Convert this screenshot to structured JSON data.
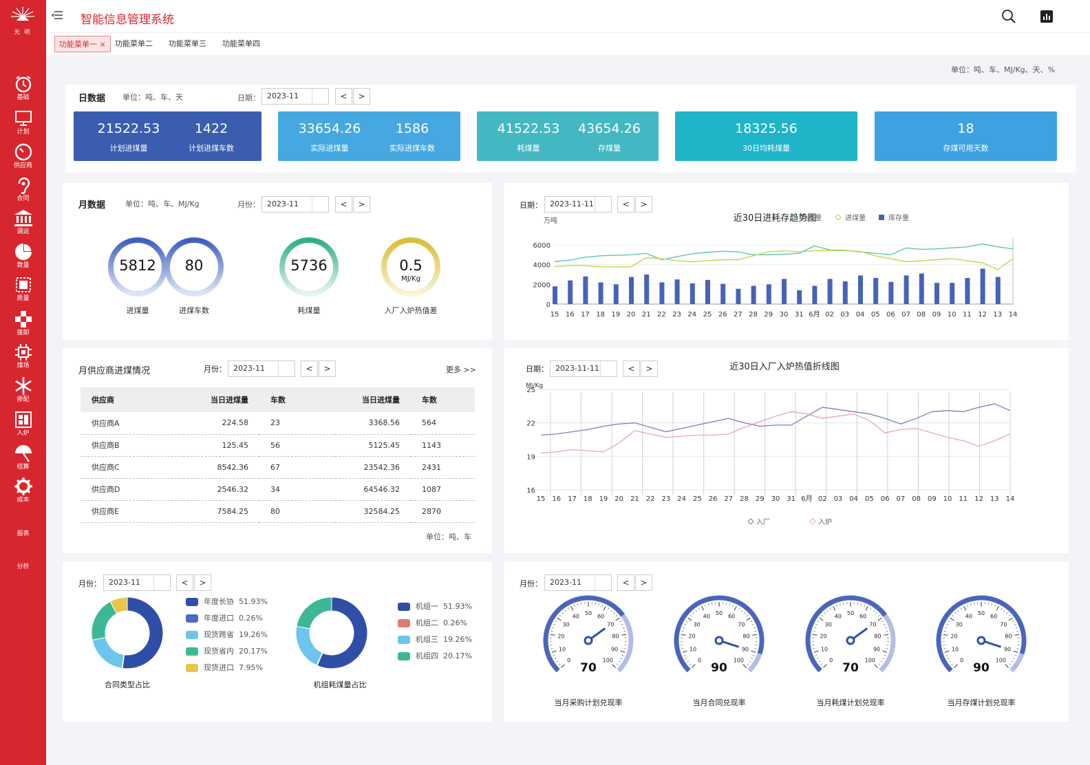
{
  "colors": {
    "brand": "#d8262e",
    "kpi1": "#3a5db0",
    "kpi2": "#46a8e0",
    "kpi3": "#44b8c2",
    "kpi4": "#1fb4c8",
    "kpi5": "#3ea1e2"
  },
  "brand": {
    "logo_text": "光 明",
    "app_title": "智能信息管理系统"
  },
  "nav": [
    {
      "label": "基础",
      "icon": "alarm-clock-icon"
    },
    {
      "label": "计划",
      "icon": "monitor-icon"
    },
    {
      "label": "供应商",
      "icon": "speedometer-icon"
    },
    {
      "label": "合同",
      "icon": "ear-icon"
    },
    {
      "label": "调运",
      "icon": "bank-icon"
    },
    {
      "label": "数量",
      "icon": "pie-chart-icon"
    },
    {
      "label": "质量",
      "icon": "grid-icon"
    },
    {
      "label": "接卸",
      "icon": "cross-icon"
    },
    {
      "label": "煤场",
      "icon": "chip-icon"
    },
    {
      "label": "掺配",
      "icon": "snowflake-icon"
    },
    {
      "label": "入炉",
      "icon": "layout-icon"
    },
    {
      "label": "结算",
      "icon": "umbrella-icon"
    },
    {
      "label": "成本",
      "icon": "gear-icon"
    },
    {
      "label": "报表",
      "icon": ""
    },
    {
      "label": "分析",
      "icon": ""
    }
  ],
  "tabs": [
    {
      "label": "功能菜单一",
      "close": "×"
    },
    {
      "label": "功能菜单二"
    },
    {
      "label": "功能菜单三"
    },
    {
      "label": "功能菜单四"
    }
  ],
  "unit_top": "单位：吨、车、MJ/Kg、天、%",
  "daily": {
    "title": "日数据",
    "unit": "单位：吨、车、天",
    "date_label": "日期：",
    "date": "2023-11",
    "prev": "<",
    "next": ">",
    "kpis": [
      {
        "values": [
          "21522.53",
          "1422"
        ],
        "labels": [
          "计划进煤量",
          "计划进煤车数"
        ]
      },
      {
        "values": [
          "33654.26",
          "1586"
        ],
        "labels": [
          "实际进煤量",
          "实际进煤车数"
        ]
      },
      {
        "values": [
          "41522.53",
          "43654.26"
        ],
        "labels": [
          "耗煤量",
          "存煤量"
        ]
      },
      {
        "values": [
          "18325.56"
        ],
        "labels": [
          "30日均耗煤量"
        ]
      },
      {
        "values": [
          "18"
        ],
        "labels": [
          "存煤可用天数"
        ]
      }
    ]
  },
  "monthly": {
    "title": "月数据",
    "unit": "单位：吨、车、MJ/Kg",
    "date_label": "月份：",
    "date": "2023-11",
    "prev": "<",
    "next": ">",
    "rings": [
      {
        "value": "5812",
        "label": "进煤量",
        "color": "#4a6bc4"
      },
      {
        "value": "80",
        "label": "进煤车数",
        "color": "#4a6bc4"
      },
      {
        "value": "5736",
        "label": "耗煤量",
        "color": "#3cb896"
      },
      {
        "value": "0.5",
        "unit": "MJ/Kg",
        "label": "入厂入炉热值差",
        "color": "#e0c84a"
      }
    ]
  },
  "trend": {
    "date_label": "日期：",
    "date": "2023-11-11",
    "prev": "<",
    "next": ">"
  },
  "chart_data": [
    {
      "type": "bar",
      "title": "近30日进耗存趋势图",
      "ylabel": "万吨",
      "ylim": [
        0,
        6000
      ],
      "yticks": [
        "6000",
        "4000",
        "2000",
        "0"
      ],
      "categories": [
        "15",
        "16",
        "17",
        "18",
        "19",
        "20",
        "21",
        "22",
        "23",
        "24",
        "25",
        "26",
        "27",
        "28",
        "29",
        "30",
        "31",
        "6月",
        "02",
        "03",
        "04",
        "05",
        "06",
        "07",
        "08",
        "09",
        "10",
        "11",
        "12",
        "13",
        "14"
      ],
      "legend_position": "top-right",
      "series": [
        {
          "name": "耗煤量",
          "type": "line",
          "color": "#5cc6b0",
          "values": [
            4300,
            4450,
            4750,
            4900,
            4950,
            5000,
            5150,
            4500,
            4800,
            5100,
            5250,
            5350,
            5300,
            5000,
            5000,
            5050,
            5150,
            5900,
            5500,
            5450,
            5300,
            5150,
            5000,
            5700,
            5550,
            5600,
            5700,
            5800,
            6100,
            5800,
            5600
          ]
        },
        {
          "name": "进煤量",
          "type": "line",
          "color": "#c2d646",
          "values": [
            3800,
            3900,
            3900,
            3800,
            3750,
            3800,
            4700,
            4600,
            4400,
            4300,
            4400,
            4500,
            4500,
            4900,
            5300,
            5400,
            5300,
            5400,
            5450,
            5400,
            5350,
            4900,
            4600,
            4300,
            4400,
            4500,
            4600,
            4400,
            4200,
            3500,
            4600
          ]
        },
        {
          "name": "库存量",
          "type": "bar",
          "color": "#4663b8",
          "values": [
            1800,
            2400,
            2800,
            2200,
            2000,
            2750,
            3000,
            2200,
            2500,
            2100,
            2450,
            2050,
            1550,
            1850,
            2000,
            2550,
            1400,
            1850,
            2550,
            2300,
            2900,
            2650,
            2250,
            2900,
            3100,
            2150,
            2150,
            2650,
            3600,
            2750,
            0
          ]
        }
      ]
    },
    {
      "type": "line",
      "title": "近30日入厂入炉热值折线图",
      "ylabel": "MJ/Kg",
      "ylim": [
        16,
        25
      ],
      "yticks": [
        "25",
        "22",
        "19",
        "16"
      ],
      "categories": [
        "15",
        "16",
        "17",
        "18",
        "19",
        "20",
        "21",
        "22",
        "23",
        "24",
        "25",
        "26",
        "27",
        "28",
        "29",
        "30",
        "31",
        "6月",
        "02",
        "03",
        "04",
        "05",
        "06",
        "07",
        "08",
        "09",
        "10",
        "11",
        "12",
        "13",
        "14"
      ],
      "legend_position": "bottom",
      "series": [
        {
          "name": "入厂",
          "color": "#7b7fb8",
          "values": [
            20.9,
            21.0,
            21.2,
            21.4,
            21.7,
            21.9,
            22.0,
            21.6,
            21.2,
            21.5,
            21.8,
            22.1,
            22.4,
            22.0,
            21.7,
            21.8,
            21.8,
            22.6,
            23.4,
            23.2,
            23.0,
            22.8,
            22.4,
            21.9,
            22.4,
            23.0,
            23.1,
            23.0,
            23.4,
            23.7,
            23.1
          ]
        },
        {
          "name": "入炉",
          "color": "#e7a4b6",
          "values": [
            19.3,
            19.4,
            19.6,
            19.5,
            19.4,
            20.2,
            21.3,
            21.0,
            20.7,
            20.8,
            20.9,
            20.9,
            21.0,
            21.6,
            22.1,
            22.6,
            23.0,
            22.8,
            22.4,
            22.6,
            22.8,
            22.2,
            21.1,
            21.4,
            21.5,
            21.1,
            20.7,
            20.4,
            19.9,
            20.4,
            21.0
          ]
        }
      ]
    },
    {
      "type": "pie",
      "title": "合同类型占比",
      "labels": [
        "年度长协",
        "年度进口",
        "现货跨省",
        "现货省内",
        "现货进口"
      ],
      "values": [
        51.93,
        0.26,
        19.26,
        20.17,
        7.95
      ],
      "value_labels": [
        "51.93%",
        "0.26%",
        "19.26%",
        "20.17%",
        "7.95%"
      ],
      "colors": [
        "#2f4ea7",
        "#4a6bc4",
        "#6cc5ec",
        "#3cb896",
        "#e7c64a"
      ]
    },
    {
      "type": "pie",
      "title": "机组耗煤量占比",
      "labels": [
        "机组一",
        "机组二",
        "机组三",
        "机组四"
      ],
      "values": [
        51.93,
        0.26,
        19.26,
        20.17
      ],
      "value_labels": [
        "51.93%",
        "0.26%",
        "19.26%",
        "20.17%"
      ],
      "colors": [
        "#2f4ea7",
        "#e47979",
        "#6cc5ec",
        "#3cb896"
      ]
    }
  ],
  "supply": {
    "title": "月供应商进煤情况",
    "date_label": "月份：",
    "date": "2023-11",
    "prev": "<",
    "next": ">",
    "more": "更多 >>",
    "headers": [
      "供应商",
      "当日进煤量",
      "车数",
      "当日进煤量",
      "车数"
    ],
    "rows": [
      [
        "供应商A",
        "224.58",
        "23",
        "3368.56",
        "564"
      ],
      [
        "供应商B",
        "125.45",
        "56",
        "5125.45",
        "1143"
      ],
      [
        "供应商C",
        "8542.36",
        "67",
        "23542.36",
        "2431"
      ],
      [
        "供应商D",
        "2546.32",
        "34",
        "64546.32",
        "1087"
      ],
      [
        "供应商E",
        "7584.25",
        "80",
        "32584.25",
        "2870"
      ]
    ],
    "unit": "单位：吨、车"
  },
  "heat": {
    "date_label": "日期：",
    "date": "2023-11-11",
    "prev": "<",
    "next": ">"
  },
  "pies": {
    "date_label": "月份：",
    "date": "2023-11",
    "prev": "<",
    "next": ">"
  },
  "gauges": {
    "date_label": "月份：",
    "date": "2023-11",
    "prev": "<",
    "next": ">",
    "ticks": [
      "0",
      "10",
      "20",
      "30",
      "40",
      "50",
      "60",
      "70",
      "80",
      "90",
      "100"
    ],
    "items": [
      {
        "value": 70,
        "display": "70",
        "label": "当月采购计划兑现率"
      },
      {
        "value": 90,
        "display": "90",
        "label": "当月合同兑现率"
      },
      {
        "value": 70,
        "display": "70",
        "label": "当月耗煤计划兑现率"
      },
      {
        "value": 90,
        "display": "90",
        "label": "当月存煤计划兑现率"
      }
    ]
  }
}
